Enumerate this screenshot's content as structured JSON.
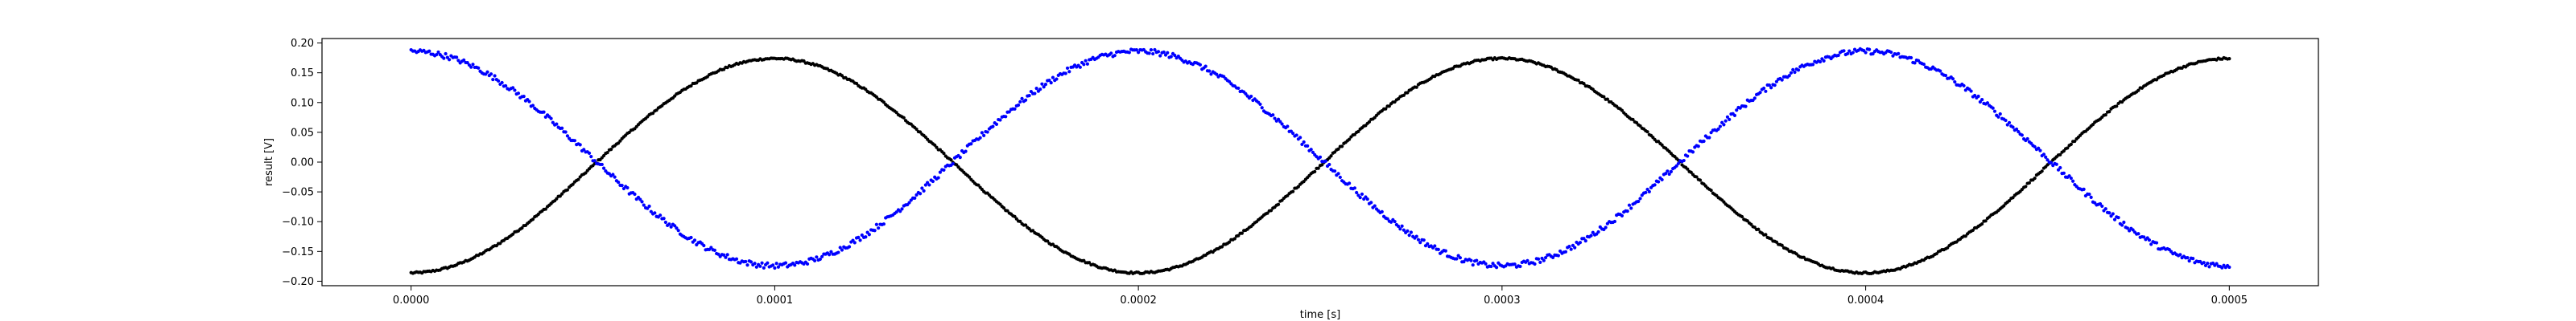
{
  "chart_data": {
    "type": "scatter",
    "title": "",
    "xlabel": "time [s]",
    "ylabel": "result [V]",
    "xlim": [
      -2.45e-05,
      0.0005245
    ],
    "ylim": [
      -0.2075,
      0.2075
    ],
    "grid": false,
    "xticks": [
      0.0,
      0.0001,
      0.0002,
      0.0003,
      0.0004,
      0.0005
    ],
    "xtick_labels": [
      "0.0000",
      "0.0001",
      "0.0002",
      "0.0003",
      "0.0004",
      "0.0005"
    ],
    "yticks": [
      -0.2,
      -0.15,
      -0.1,
      -0.05,
      0.0,
      0.05,
      0.1,
      0.15,
      0.2
    ],
    "ytick_labels": [
      "−0.20",
      "−0.15",
      "−0.10",
      "−0.05",
      "0.00",
      "0.05",
      "0.10",
      "0.15",
      "0.20"
    ],
    "series": [
      {
        "color": "#000000",
        "model": {
          "amplitude": 0.18,
          "offset": -0.006,
          "period": 0.0002,
          "phase": "negative-cosine"
        },
        "x_range": [
          0.0,
          0.0005
        ],
        "values_sampled": {
          "x": [
            0.0,
            5e-05,
            0.0001,
            0.00015,
            0.0002,
            0.00025,
            0.0003,
            0.00035,
            0.0004,
            0.00045,
            0.0005
          ],
          "y": [
            -0.186,
            -0.006,
            0.174,
            -0.006,
            -0.186,
            -0.006,
            0.174,
            -0.006,
            -0.186,
            -0.006,
            0.174
          ]
        }
      },
      {
        "color": "#0000ff",
        "model": {
          "amplitude": 0.18,
          "offset": 0.006,
          "period": 0.0002,
          "phase": "cosine"
        },
        "x_range": [
          0.0,
          0.0005
        ],
        "values_sampled": {
          "x": [
            0.0,
            5e-05,
            0.0001,
            0.00015,
            0.0002,
            0.00025,
            0.0003,
            0.00035,
            0.0004,
            0.00045,
            0.0005
          ],
          "y": [
            0.186,
            0.006,
            -0.174,
            0.006,
            0.186,
            0.006,
            -0.174,
            0.006,
            0.186,
            0.006,
            -0.174
          ]
        }
      }
    ]
  }
}
